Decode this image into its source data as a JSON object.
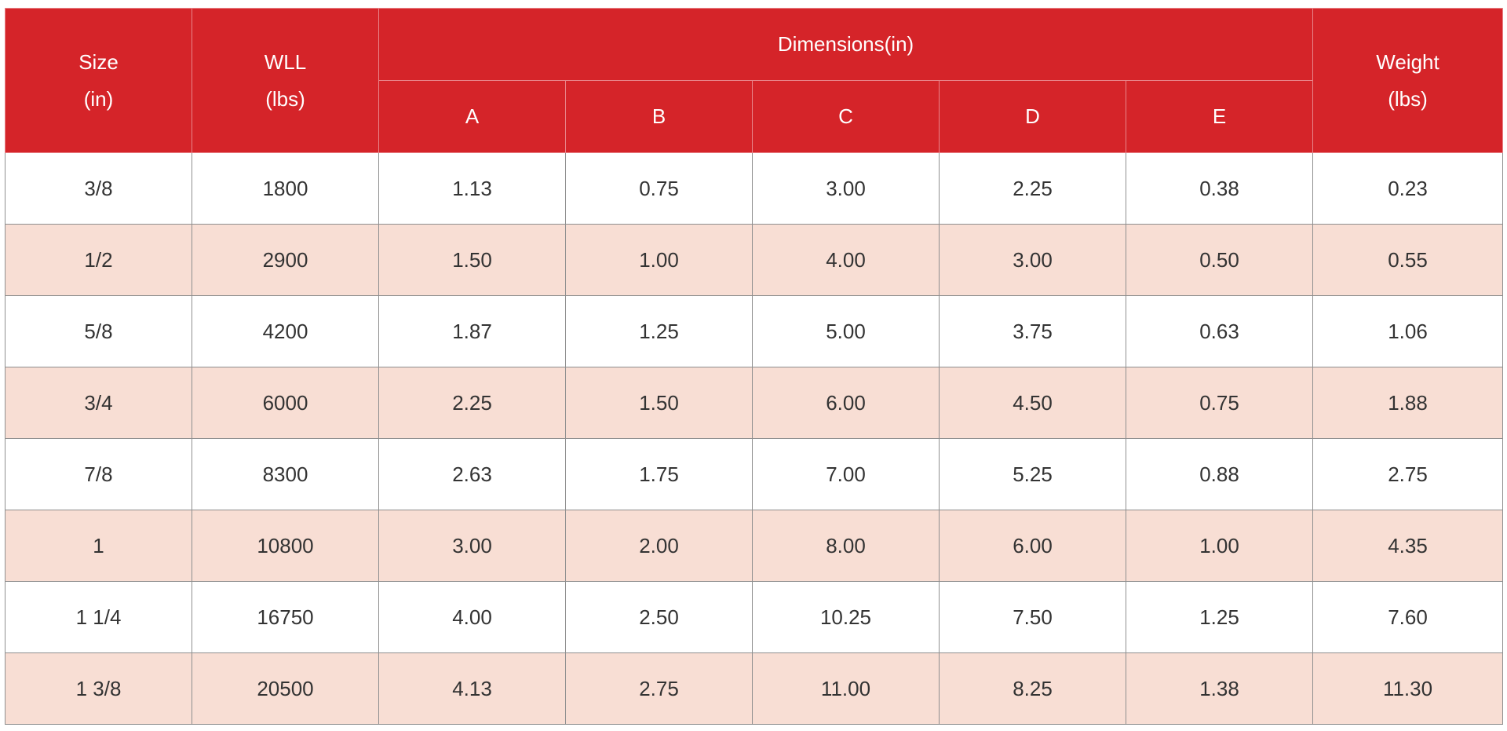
{
  "header": {
    "size": {
      "line1": "Size",
      "line2": "(in)"
    },
    "wll": {
      "line1": "WLL",
      "line2": "(lbs)"
    },
    "dimensions": "Dimensions(in)",
    "dim_columns": [
      "A",
      "B",
      "C",
      "D",
      "E"
    ],
    "weight": {
      "line1": "Weight",
      "line2": "(lbs)"
    }
  },
  "rows": [
    [
      "3/8",
      "1800",
      "1.13",
      "0.75",
      "3.00",
      "2.25",
      "0.38",
      "0.23"
    ],
    [
      "1/2",
      "2900",
      "1.50",
      "1.00",
      "4.00",
      "3.00",
      "0.50",
      "0.55"
    ],
    [
      "5/8",
      "4200",
      "1.87",
      "1.25",
      "5.00",
      "3.75",
      "0.63",
      "1.06"
    ],
    [
      "3/4",
      "6000",
      "2.25",
      "1.50",
      "6.00",
      "4.50",
      "0.75",
      "1.88"
    ],
    [
      "7/8",
      "8300",
      "2.63",
      "1.75",
      "7.00",
      "5.25",
      "0.88",
      "2.75"
    ],
    [
      "1",
      "10800",
      "3.00",
      "2.00",
      "8.00",
      "6.00",
      "1.00",
      "4.35"
    ],
    [
      "1 1/4",
      "16750",
      "4.00",
      "2.50",
      "10.25",
      "7.50",
      "1.25",
      "7.60"
    ],
    [
      "1 3/8",
      "20500",
      "4.13",
      "2.75",
      "11.00",
      "8.25",
      "1.38",
      "11.30"
    ]
  ],
  "colors": {
    "header_bg": "#d52429",
    "header_text": "#ffffff",
    "row_alt_bg": "#f8ded4",
    "row_bg": "#ffffff",
    "text": "#333333"
  }
}
